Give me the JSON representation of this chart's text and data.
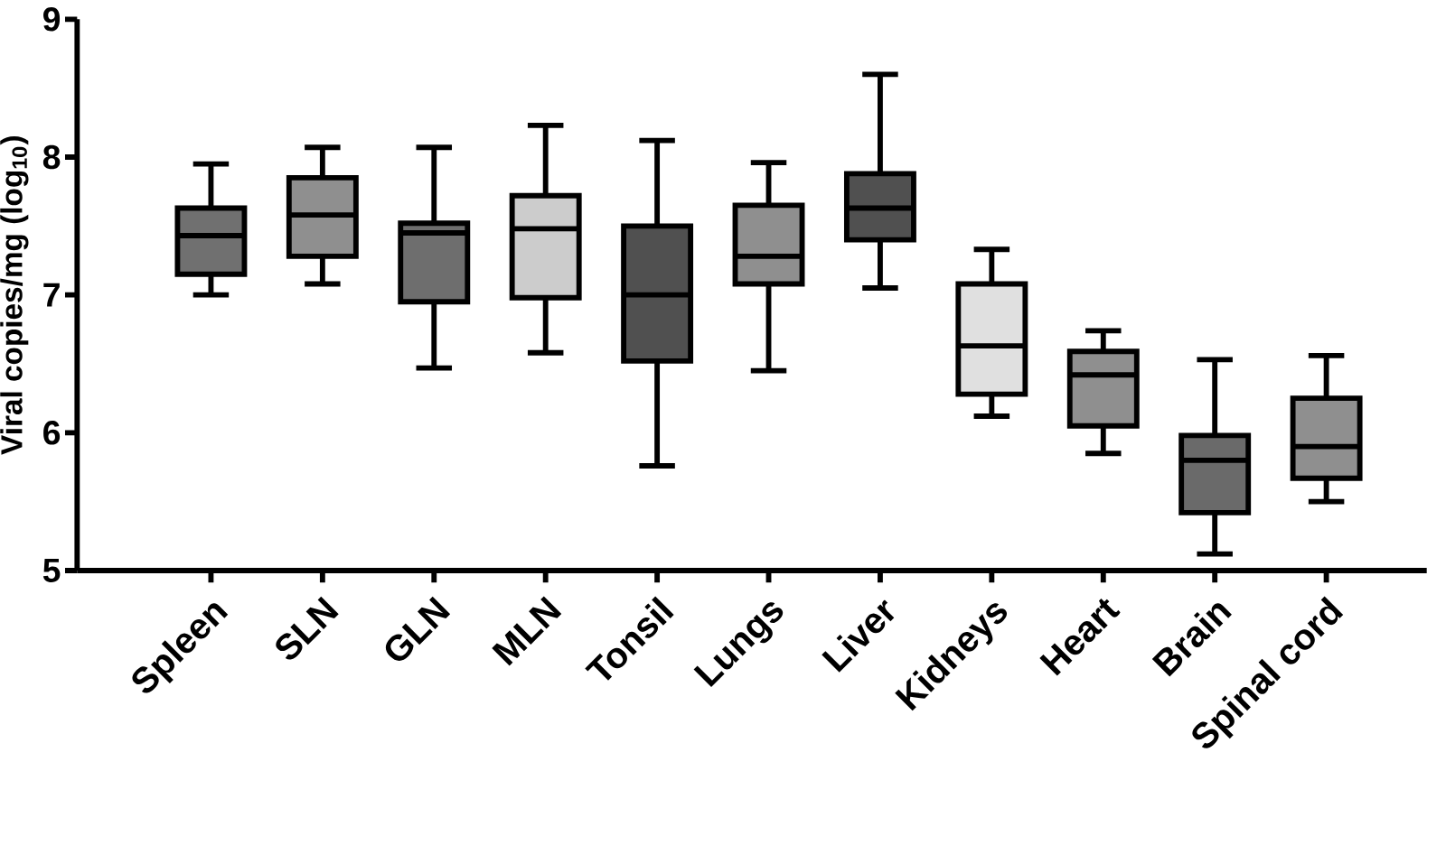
{
  "chart_data": {
    "type": "box",
    "ylabel": "Viral copies/mg (log$_{10}$)",
    "categories": [
      "Spleen",
      "SLN",
      "GLN",
      "MLN",
      "Tonsil",
      "Lungs",
      "Liver",
      "Kidneys",
      "Heart",
      "Brain",
      "Spinal cord"
    ],
    "colors": [
      "#707070",
      "#8f8f8f",
      "#6e6e6e",
      "#cccccc",
      "#505050",
      "#8f8f8f",
      "#505050",
      "#e0e0e0",
      "#8f8f8f",
      "#6a6a6a",
      "#8f8f8f"
    ],
    "boxes": [
      {
        "low": 7.0,
        "q1": 7.15,
        "median": 7.43,
        "q3": 7.63,
        "high": 7.95
      },
      {
        "low": 7.08,
        "q1": 7.28,
        "median": 7.58,
        "q3": 7.85,
        "high": 8.07
      },
      {
        "low": 6.47,
        "q1": 6.95,
        "median": 7.45,
        "q3": 7.52,
        "high": 8.07
      },
      {
        "low": 6.58,
        "q1": 6.98,
        "median": 7.48,
        "q3": 7.72,
        "high": 8.23
      },
      {
        "low": 5.76,
        "q1": 6.52,
        "median": 7.0,
        "q3": 7.5,
        "high": 8.12
      },
      {
        "low": 6.45,
        "q1": 7.08,
        "median": 7.28,
        "q3": 7.65,
        "high": 7.96
      },
      {
        "low": 7.05,
        "q1": 7.4,
        "median": 7.63,
        "q3": 7.88,
        "high": 8.6
      },
      {
        "low": 6.12,
        "q1": 6.28,
        "median": 6.63,
        "q3": 7.08,
        "high": 7.33
      },
      {
        "low": 5.85,
        "q1": 6.05,
        "median": 6.42,
        "q3": 6.59,
        "high": 6.74
      },
      {
        "low": 5.12,
        "q1": 5.42,
        "median": 5.8,
        "q3": 5.98,
        "high": 6.53
      },
      {
        "low": 5.5,
        "q1": 5.67,
        "median": 5.9,
        "q3": 6.25,
        "high": 6.56
      }
    ],
    "ylim": [
      5,
      9
    ],
    "yticks": [
      5,
      6,
      7,
      8,
      9
    ],
    "grid": false
  }
}
